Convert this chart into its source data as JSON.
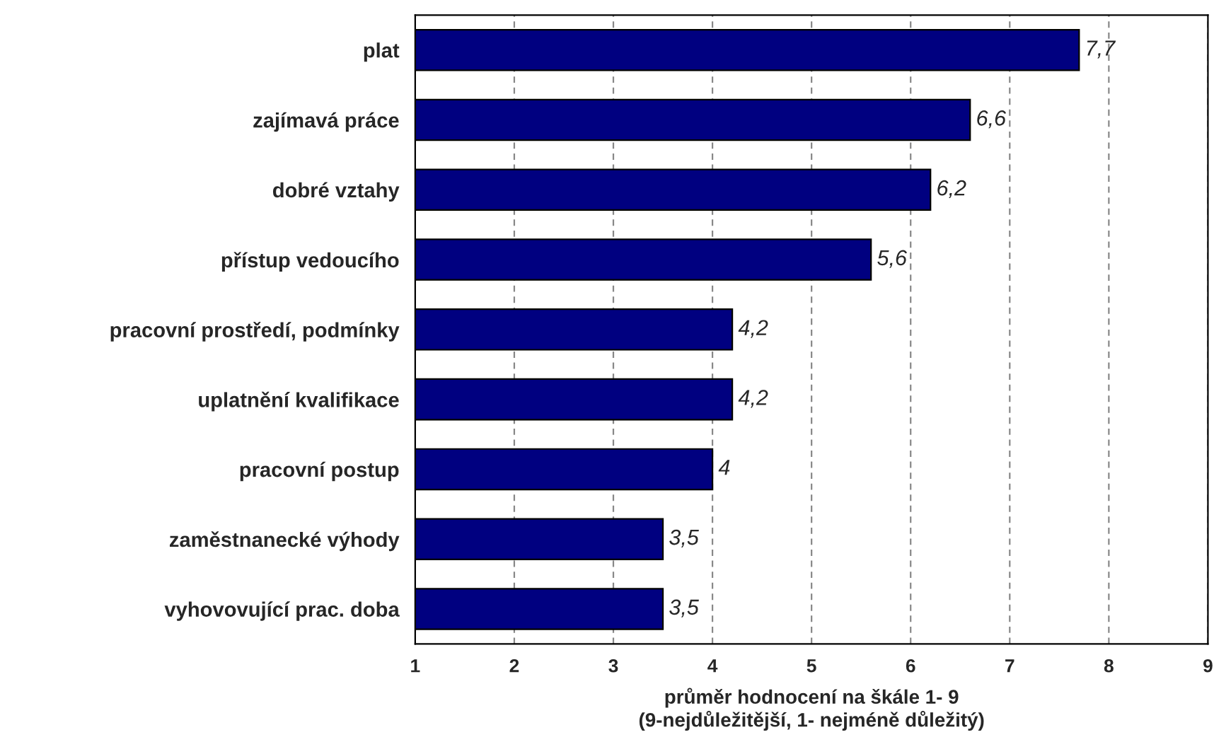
{
  "chart_data": {
    "type": "bar",
    "orientation": "horizontal",
    "categories": [
      "plat",
      "zajímavá práce",
      "dobré vztahy",
      "přístup vedoucího",
      "pracovní prostředí, podmínky",
      "uplatnění kvalifikace",
      "pracovní postup",
      "zaměstnanecké výhody",
      "vyhovovující prac. doba"
    ],
    "values": [
      7.7,
      6.6,
      6.2,
      5.6,
      4.2,
      4.2,
      4.0,
      3.5,
      3.5
    ],
    "value_labels": [
      "7,7",
      "6,6",
      "6,2",
      "5,6",
      "4,2",
      "4,2",
      "4",
      "3,5",
      "3,5"
    ],
    "color": "#000080",
    "xlabel": "průměr hodnocení na škále 1- 9\n(9-nejdůležitější, 1- nejméně důležitý)",
    "xlim": [
      1,
      9
    ],
    "xticks": [
      1,
      2,
      3,
      4,
      5,
      6,
      7,
      8,
      9
    ],
    "grid": "x",
    "legend": false
  }
}
